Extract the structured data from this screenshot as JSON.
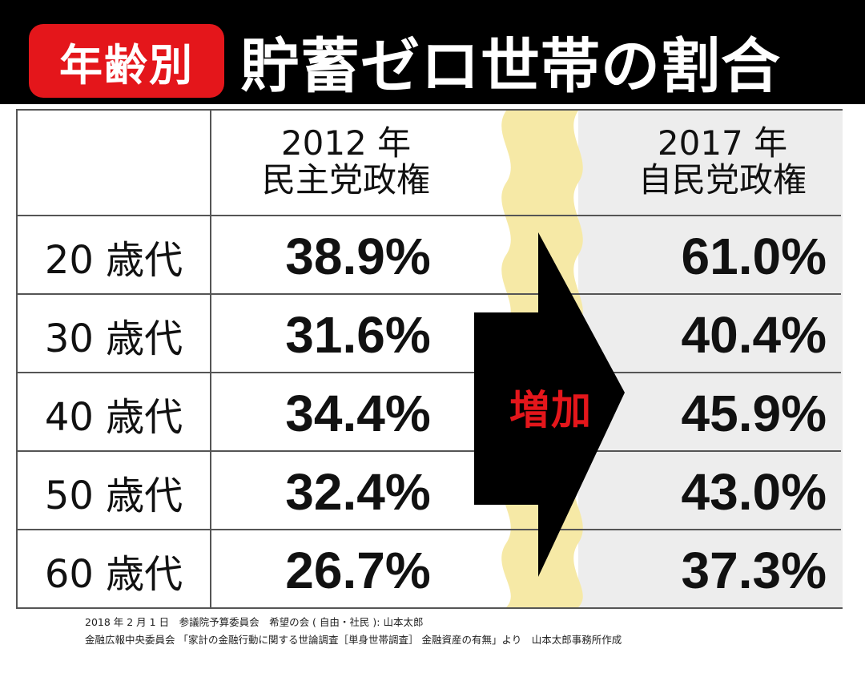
{
  "header": {
    "badge": "年齢別",
    "title": "貯蓄ゼロ世帯の割合"
  },
  "chart_data": {
    "type": "table",
    "columns": [
      {
        "year": "2012 年",
        "government": "民主党政権"
      },
      {
        "year": "2017 年",
        "government": "自民党政権"
      }
    ],
    "rows": [
      {
        "age": "20 歳代",
        "values": [
          "38.9%",
          "61.0%"
        ]
      },
      {
        "age": "30 歳代",
        "values": [
          "31.6%",
          "40.4%"
        ]
      },
      {
        "age": "40 歳代",
        "values": [
          "34.4%",
          "45.9%"
        ]
      },
      {
        "age": "50 歳代",
        "values": [
          "32.4%",
          "43.0%"
        ]
      },
      {
        "age": "60 歳代",
        "values": [
          "26.7%",
          "37.3%"
        ]
      }
    ],
    "arrow_label": "増加"
  },
  "colors": {
    "accent_red": "#e4161b",
    "header_bg": "#000000",
    "wave_yellow": "#f6e9a6",
    "right_col_bg": "#ededed"
  },
  "footer": {
    "line1": "2018 年 2 月 1 日　参議院予算委員会　希望の会 ( 自由・社民 ): 山本太郎",
    "line2": "金融広報中央委員会 「家計の金融行動に関する世論調査［単身世帯調査］ 金融資産の有無」より　山本太郎事務所作成"
  }
}
